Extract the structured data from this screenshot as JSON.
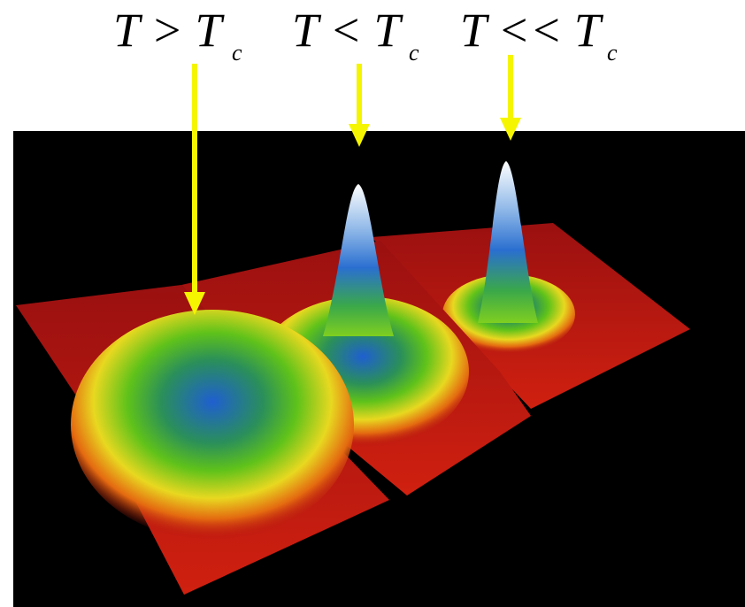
{
  "labels": [
    {
      "text": "T > T",
      "subscript": "c"
    },
    {
      "text": "T < T",
      "subscript": "c"
    },
    {
      "text": "T << T",
      "subscript": "c"
    }
  ]
}
